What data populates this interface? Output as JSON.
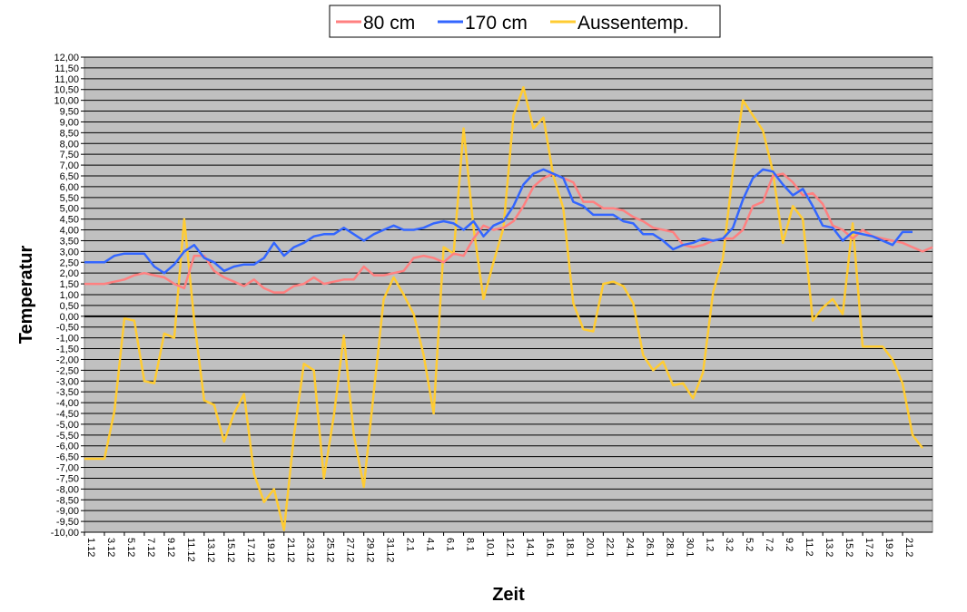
{
  "chart_data": {
    "type": "line",
    "xlabel": "Zeit",
    "ylabel": "Temperatur",
    "ylim": [
      -10,
      12
    ],
    "ytick_step": 0.5,
    "grid": true,
    "legend_position": "top-center",
    "x_tick_labels": [
      "1.12",
      "3.12",
      "5.12",
      "7.12",
      "9.12",
      "11.12",
      "13.12",
      "15.12",
      "17.12",
      "19.12",
      "21.12",
      "23.12",
      "25.12",
      "27.12",
      "29.12",
      "31.12",
      "2.1",
      "4.1",
      "6.1",
      "8.1",
      "10.1",
      "12.1",
      "14.1",
      "16.1",
      "18.1",
      "20.1",
      "22.1",
      "24.1",
      "26.1",
      "28.1",
      "30.1",
      "1.2",
      "3.2",
      "5.2",
      "7.2",
      "9.2",
      "11.2",
      "13.2",
      "15.2",
      "17.2",
      "19.2",
      "21.2"
    ],
    "series": [
      {
        "name": "80 cm",
        "color": "#ff8080",
        "values": [
          1.5,
          1.5,
          1.5,
          1.6,
          1.7,
          1.9,
          2.0,
          1.9,
          1.8,
          1.5,
          1.3,
          2.8,
          2.8,
          2.1,
          1.8,
          1.6,
          1.4,
          1.7,
          1.3,
          1.1,
          1.1,
          1.4,
          1.5,
          1.8,
          1.5,
          1.6,
          1.7,
          1.7,
          2.3,
          1.9,
          1.9,
          2.0,
          2.1,
          2.7,
          2.8,
          2.7,
          2.5,
          2.9,
          2.8,
          3.6,
          4.2,
          4.0,
          4.1,
          4.4,
          5.1,
          6.0,
          6.4,
          6.6,
          6.4,
          6.2,
          5.3,
          5.3,
          5.0,
          5.0,
          4.9,
          4.6,
          4.4,
          4.1,
          4.0,
          3.9,
          3.3,
          3.2,
          3.3,
          3.5,
          3.6,
          3.6,
          4.0,
          5.1,
          5.3,
          6.5,
          6.6,
          6.2,
          5.6,
          5.7,
          5.2,
          4.2,
          4.0,
          3.6,
          4.0,
          3.7,
          3.6,
          3.5,
          3.4,
          3.2,
          3.0,
          3.2
        ]
      },
      {
        "name": "170 cm",
        "color": "#3366ff",
        "values": [
          2.5,
          2.5,
          2.5,
          2.8,
          2.9,
          2.9,
          2.9,
          2.3,
          2.0,
          2.4,
          3.0,
          3.3,
          2.7,
          2.5,
          2.1,
          2.3,
          2.4,
          2.4,
          2.7,
          3.4,
          2.8,
          3.2,
          3.4,
          3.7,
          3.8,
          3.8,
          4.1,
          3.8,
          3.5,
          3.8,
          4.0,
          4.2,
          4.0,
          4.0,
          4.1,
          4.3,
          4.4,
          4.3,
          4.0,
          4.4,
          3.7,
          4.2,
          4.4,
          5.1,
          6.1,
          6.6,
          6.8,
          6.6,
          6.4,
          5.3,
          5.1,
          4.7,
          4.7,
          4.7,
          4.4,
          4.3,
          3.8,
          3.8,
          3.5,
          3.1,
          3.3,
          3.4,
          3.6,
          3.5,
          3.6,
          4.1,
          5.4,
          6.4,
          6.8,
          6.7,
          6.1,
          5.6,
          5.9,
          5.1,
          4.2,
          4.1,
          3.5,
          3.9,
          3.8,
          3.7,
          3.5,
          3.3,
          3.9,
          3.9
        ]
      },
      {
        "name": "Aussentemp.",
        "color": "#ffcc33",
        "values": [
          -6.6,
          -6.6,
          -6.6,
          -4.4,
          -0.1,
          -0.2,
          -3.0,
          -3.1,
          -0.8,
          -1.0,
          4.5,
          -0.2,
          -3.9,
          -4.1,
          -5.8,
          -4.5,
          -3.6,
          -7.3,
          -8.6,
          -8.0,
          -9.9,
          -5.5,
          -2.2,
          -2.5,
          -7.5,
          -4.6,
          -0.9,
          -5.5,
          -7.9,
          -3.5,
          0.8,
          1.8,
          1.0,
          0.1,
          -1.8,
          -4.5,
          3.2,
          2.9,
          8.7,
          4.1,
          0.8,
          2.5,
          4.1,
          9.3,
          10.6,
          8.7,
          9.2,
          6.5,
          5.0,
          0.6,
          -0.6,
          -0.7,
          1.5,
          1.6,
          1.4,
          0.6,
          -1.8,
          -2.5,
          -2.1,
          -3.2,
          -3.1,
          -3.8,
          -2.6,
          1.1,
          2.7,
          6.7,
          10.0,
          9.3,
          8.6,
          6.7,
          3.4,
          5.1,
          4.5,
          -0.2,
          0.4,
          0.8,
          0.1,
          4.3,
          -1.4,
          -1.4,
          -1.4,
          -2.0,
          -3.1,
          -5.5,
          -6.1
        ]
      }
    ]
  }
}
